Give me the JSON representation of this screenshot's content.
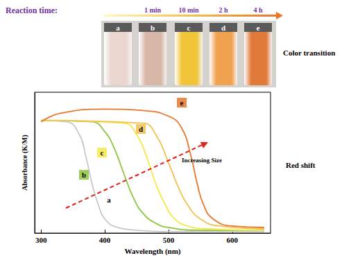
{
  "chart_data": {
    "type": "line",
    "x_label": "Wavelength (nm)",
    "y_label": "Absorbance (K/M)",
    "xlim": [
      290,
      660
    ],
    "xticks": [
      300,
      400,
      500,
      600
    ],
    "ylim": [
      0,
      1
    ],
    "tick_labels": "x",
    "grid": false,
    "annotation": "Increasing Size",
    "side_labels": {
      "photo": "Color transition",
      "chart": "Red shift"
    },
    "reaction_time": {
      "label": "Reaction time:",
      "times": [
        null,
        "1 min",
        "10 min",
        "2 h",
        "4 h"
      ]
    },
    "series": [
      {
        "name": "a",
        "color": "#c8c8c8",
        "x": [
          300,
          340,
          360,
          370,
          380,
          390,
          400,
          420,
          450,
          500,
          600,
          650
        ],
        "values": [
          0.8,
          0.79,
          0.7,
          0.55,
          0.35,
          0.2,
          0.1,
          0.04,
          0.02,
          0.01,
          0.01,
          0.01
        ]
      },
      {
        "name": "b",
        "color": "#8cc63f",
        "x": [
          300,
          380,
          400,
          415,
          430,
          445,
          460,
          480,
          500,
          550,
          650
        ],
        "values": [
          0.8,
          0.79,
          0.72,
          0.6,
          0.42,
          0.25,
          0.14,
          0.07,
          0.04,
          0.02,
          0.02
        ]
      },
      {
        "name": "c",
        "color": "#f5e94a",
        "x": [
          300,
          430,
          450,
          465,
          480,
          495,
          510,
          530,
          560,
          650
        ],
        "values": [
          0.8,
          0.78,
          0.7,
          0.55,
          0.35,
          0.2,
          0.1,
          0.05,
          0.03,
          0.02
        ]
      },
      {
        "name": "d",
        "color": "#f2c14e",
        "x": [
          300,
          460,
          480,
          500,
          515,
          530,
          550,
          580,
          650
        ],
        "values": [
          0.8,
          0.78,
          0.7,
          0.5,
          0.33,
          0.2,
          0.1,
          0.05,
          0.03
        ]
      },
      {
        "name": "e",
        "color": "#e8762a",
        "x": [
          300,
          330,
          400,
          460,
          500,
          520,
          535,
          545,
          555,
          570,
          600,
          650
        ],
        "values": [
          0.79,
          0.85,
          0.88,
          0.87,
          0.83,
          0.75,
          0.55,
          0.35,
          0.2,
          0.1,
          0.05,
          0.04
        ]
      }
    ]
  }
}
